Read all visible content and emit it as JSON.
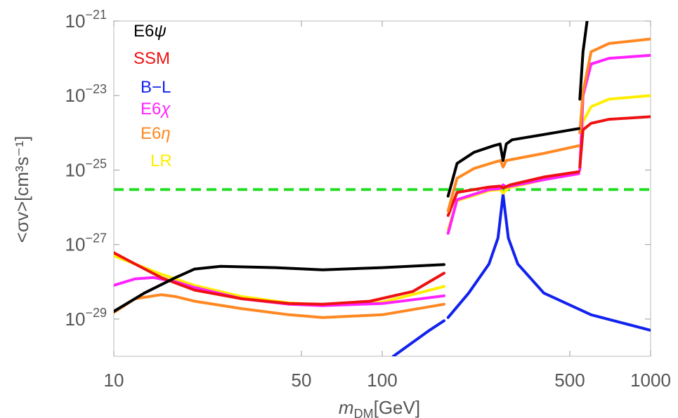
{
  "chart_data": {
    "type": "line",
    "xlabel": "m_DM[GeV]",
    "xlabel_main": "m",
    "xlabel_sub": "DM",
    "xlabel_unit": "[GeV]",
    "ylabel": "<σv>[cm³s⁻¹]",
    "xscale": "log",
    "yscale": "log",
    "xlim": [
      10,
      1000
    ],
    "ylim": [
      1e-30,
      1e-21
    ],
    "x_ticks": [
      {
        "value": 10,
        "label": "10"
      },
      {
        "value": 50,
        "label": "50"
      },
      {
        "value": 100,
        "label": "100"
      },
      {
        "value": 500,
        "label": "500"
      },
      {
        "value": 1000,
        "label": "1000"
      }
    ],
    "y_ticks": [
      {
        "value": 1e-29,
        "base": "10",
        "exp": "−29"
      },
      {
        "value": 1e-27,
        "base": "10",
        "exp": "−27"
      },
      {
        "value": 1e-25,
        "base": "10",
        "exp": "−25"
      },
      {
        "value": 1e-23,
        "base": "10",
        "exp": "−23"
      },
      {
        "value": 1e-21,
        "base": "10",
        "exp": "−21"
      }
    ],
    "grid": false,
    "legend_position": "top-left",
    "reference_line": {
      "y": 3e-26,
      "color": "#22dd22",
      "style": "dashed"
    },
    "series": [
      {
        "name": "E6ψ",
        "name_base": "E6",
        "name_greek": "ψ",
        "color": "#000000",
        "segments": [
          [
            [
              10,
              1.6e-29
            ],
            [
              13,
              5e-29
            ],
            [
              17,
              1.3e-28
            ],
            [
              20,
              2.2e-28
            ],
            [
              25,
              2.6e-28
            ],
            [
              40,
              2.4e-28
            ],
            [
              60,
              2.1e-28
            ],
            [
              100,
              2.4e-28
            ],
            [
              170,
              2.9e-28
            ]
          ],
          [
            [
              176,
              2e-26
            ],
            [
              190,
              1.5e-25
            ],
            [
              220,
              3e-25
            ],
            [
              260,
              4.5e-25
            ],
            [
              275,
              5e-25
            ],
            [
              282,
              1.8e-25
            ],
            [
              290,
              5e-25
            ],
            [
              305,
              6.5e-25
            ],
            [
              400,
              9e-25
            ],
            [
              540,
              1.3e-24
            ]
          ],
          [
            [
              545,
              8e-24
            ],
            [
              560,
              1.5e-22
            ],
            [
              580,
              1e-21
            ]
          ]
        ]
      },
      {
        "name": "SSM",
        "color": "#ee1111",
        "segments": [
          [
            [
              10,
              6e-28
            ],
            [
              12,
              3e-28
            ],
            [
              15,
              1.3e-28
            ],
            [
              20,
              6e-29
            ],
            [
              30,
              3.5e-29
            ],
            [
              45,
              2.6e-29
            ],
            [
              60,
              2.5e-29
            ],
            [
              90,
              3e-29
            ],
            [
              130,
              5.5e-29
            ],
            [
              170,
              1.7e-28
            ]
          ],
          [
            [
              176,
              6e-27
            ],
            [
              190,
              2.5e-26
            ],
            [
              250,
              3.5e-26
            ],
            [
              275,
              3.7e-26
            ],
            [
              282,
              3.3e-26
            ],
            [
              300,
              4e-26
            ],
            [
              400,
              6.5e-26
            ],
            [
              540,
              9e-26
            ]
          ],
          [
            [
              545,
              1.2e-25
            ],
            [
              560,
              1.2e-24
            ],
            [
              600,
              1.8e-24
            ],
            [
              700,
              2.3e-24
            ],
            [
              1000,
              2.7e-24
            ]
          ]
        ]
      },
      {
        "name": "B−L",
        "color": "#1122ee",
        "segments": [
          [
            [
              110,
              1e-30
            ],
            [
              150,
              5e-30
            ],
            [
              170,
              9e-30
            ]
          ],
          [
            [
              176,
              1.1e-29
            ],
            [
              210,
              5e-29
            ],
            [
              250,
              3e-28
            ],
            [
              270,
              1.5e-27
            ],
            [
              282,
              2.2e-26
            ],
            [
              295,
              1.5e-27
            ],
            [
              320,
              3e-28
            ],
            [
              400,
              5e-29
            ],
            [
              600,
              1.3e-29
            ],
            [
              1000,
              5e-30
            ]
          ]
        ]
      },
      {
        "name": "E6χ",
        "name_base": "E6",
        "name_greek": "χ",
        "color": "#ff22ff",
        "segments": [
          [
            [
              10,
              8e-29
            ],
            [
              12,
              1.2e-28
            ],
            [
              14,
              1.3e-28
            ],
            [
              17,
              1e-28
            ],
            [
              20,
              7e-29
            ],
            [
              30,
              3.5e-29
            ],
            [
              45,
              2.5e-29
            ],
            [
              60,
              2.3e-29
            ],
            [
              100,
              2.6e-29
            ],
            [
              170,
              4.2e-29
            ]
          ],
          [
            [
              176,
              2e-27
            ],
            [
              190,
              1.6e-26
            ],
            [
              250,
              3e-26
            ],
            [
              276,
              3.2e-26
            ],
            [
              282,
              4e-26
            ],
            [
              290,
              3.5e-26
            ],
            [
              400,
              5.5e-26
            ],
            [
              540,
              8e-26
            ]
          ],
          [
            [
              545,
              1e-25
            ],
            [
              560,
              1e-23
            ],
            [
              600,
              7e-23
            ],
            [
              700,
              1e-22
            ],
            [
              1000,
              1.2e-22
            ]
          ]
        ]
      },
      {
        "name": "E6η",
        "name_base": "E6",
        "name_greek": "η",
        "color": "#ff8822",
        "segments": [
          [
            [
              10,
              1.5e-29
            ],
            [
              12,
              3.5e-29
            ],
            [
              15,
              4.5e-29
            ],
            [
              17,
              4e-29
            ],
            [
              20,
              3e-29
            ],
            [
              30,
              1.9e-29
            ],
            [
              45,
              1.3e-29
            ],
            [
              60,
              1.1e-29
            ],
            [
              100,
              1.3e-29
            ],
            [
              170,
              2.5e-29
            ]
          ],
          [
            [
              176,
              8e-27
            ],
            [
              190,
              6e-26
            ],
            [
              220,
              1.1e-25
            ],
            [
              260,
              1.6e-25
            ],
            [
              276,
              1.8e-25
            ],
            [
              282,
              1.2e-25
            ],
            [
              290,
              1.8e-25
            ],
            [
              400,
              2.8e-25
            ],
            [
              540,
              4.5e-25
            ]
          ],
          [
            [
              545,
              1e-24
            ],
            [
              560,
              1.2e-23
            ],
            [
              600,
              1.5e-22
            ],
            [
              700,
              2.5e-22
            ],
            [
              1000,
              3.3e-22
            ]
          ]
        ]
      },
      {
        "name": "LR",
        "color": "#ffee00",
        "segments": [
          [
            [
              10,
              5e-28
            ],
            [
              12,
              3e-28
            ],
            [
              15,
              1.6e-28
            ],
            [
              20,
              8e-29
            ],
            [
              30,
              4e-29
            ],
            [
              45,
              2.7e-29
            ],
            [
              60,
              2.4e-29
            ],
            [
              100,
              2.8e-29
            ],
            [
              170,
              7.5e-29
            ]
          ],
          [
            [
              176,
              2.5e-27
            ],
            [
              190,
              1.5e-26
            ],
            [
              250,
              2.8e-26
            ],
            [
              276,
              3e-26
            ],
            [
              282,
              2.4e-26
            ],
            [
              295,
              3.3e-26
            ],
            [
              400,
              5.5e-26
            ],
            [
              540,
              8e-26
            ]
          ],
          [
            [
              545,
              1.3e-25
            ],
            [
              560,
              2e-24
            ],
            [
              600,
              5e-24
            ],
            [
              700,
              8e-24
            ],
            [
              1000,
              1e-23
            ]
          ]
        ]
      }
    ]
  }
}
